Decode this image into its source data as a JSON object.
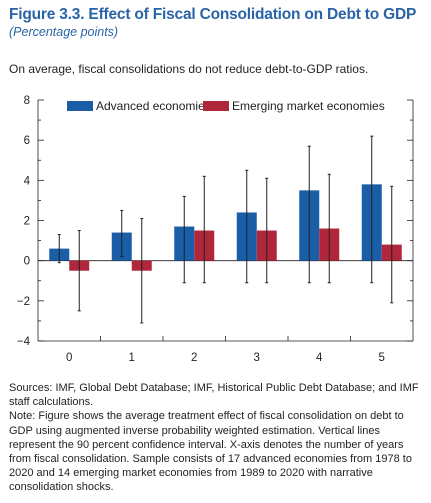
{
  "figure": {
    "title": "Figure 3.3.  Effect of Fiscal Consolidation on Debt to GDP",
    "subtitle": "(Percentage points)",
    "tagline": "On average, fiscal consolidations do not reduce debt-to-GDP ratios.",
    "sources": "Sources: IMF, Global Debt Database; IMF, Historical Public Debt Database; and IMF staff calculations.",
    "note": "Note: Figure shows the average treatment effect of fiscal consolidation on debt to GDP using augmented inverse probability weighted estimation. Vertical lines represent the 90 percent confidence interval. X-axis denotes the number of years from fiscal consolidation. Sample consists of 17 advanced economies from 1978 to 2020 and 14 emerging market economies from 1989 to 2020 with narrative consolidation shocks."
  },
  "chart_data": {
    "type": "bar",
    "title": "",
    "xlabel": "",
    "ylabel": "",
    "categories": [
      "0",
      "1",
      "2",
      "3",
      "4",
      "5"
    ],
    "ylim": [
      -4,
      8
    ],
    "yticks": [
      -4,
      -2,
      0,
      2,
      4,
      6,
      8
    ],
    "ytick_labels": [
      "−4",
      "−2",
      "0",
      "2",
      "4",
      "6",
      "8"
    ],
    "grid": false,
    "legend_position": "top",
    "series": [
      {
        "name": "Advanced economies",
        "color": "#1a5ea8",
        "values": [
          0.6,
          1.4,
          1.7,
          2.4,
          3.5,
          3.8
        ],
        "ci_low": [
          -0.1,
          0.2,
          -1.1,
          -1.1,
          -1.1,
          -1.1
        ],
        "ci_high": [
          1.3,
          2.5,
          3.2,
          4.5,
          5.7,
          6.2
        ]
      },
      {
        "name": "Emerging market economies",
        "color": "#b0263a",
        "values": [
          -0.5,
          -0.5,
          1.5,
          1.5,
          1.6,
          0.8
        ],
        "ci_low": [
          -2.5,
          -3.1,
          -1.1,
          -1.1,
          -1.1,
          -2.1
        ],
        "ci_high": [
          1.5,
          2.1,
          4.2,
          4.1,
          4.3,
          3.7
        ]
      }
    ]
  }
}
